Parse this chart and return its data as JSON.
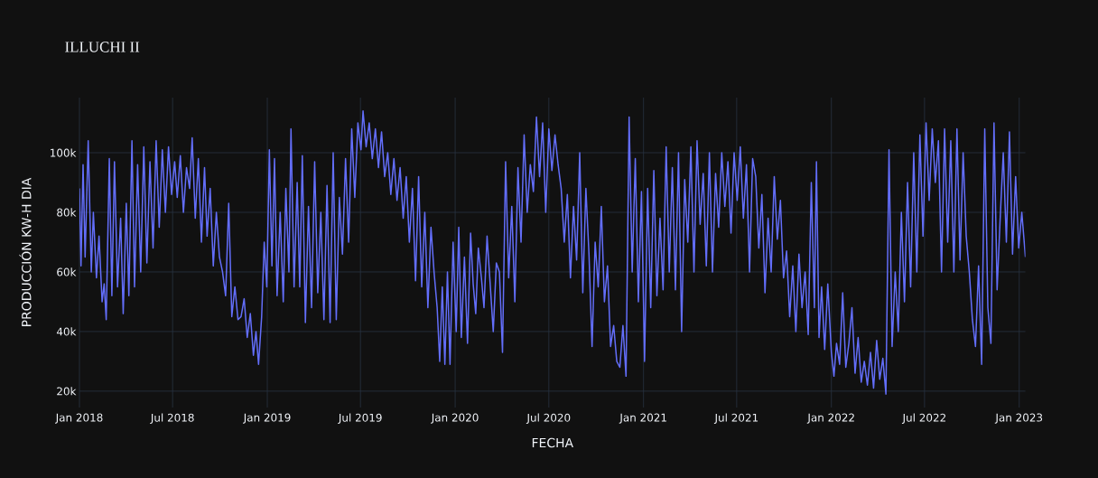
{
  "chart_data": {
    "type": "line",
    "title": "ILLUCHI II",
    "xlabel": "FECHA",
    "ylabel": "PRODUCCIÓN KW-H DIA",
    "color": "#636efa",
    "grid": true,
    "xlim": [
      "2018-01-01",
      "2023-01-13"
    ],
    "ylim": [
      14500,
      118500
    ],
    "xticks": [
      {
        "value": "2018-01-01",
        "label": "Jan 2018"
      },
      {
        "value": "2018-07-01",
        "label": "Jul 2018"
      },
      {
        "value": "2019-01-01",
        "label": "Jan 2019"
      },
      {
        "value": "2019-07-01",
        "label": "Jul 2019"
      },
      {
        "value": "2020-01-01",
        "label": "Jan 2020"
      },
      {
        "value": "2020-07-01",
        "label": "Jul 2020"
      },
      {
        "value": "2021-01-01",
        "label": "Jan 2021"
      },
      {
        "value": "2021-07-01",
        "label": "Jul 2021"
      },
      {
        "value": "2022-01-01",
        "label": "Jan 2022"
      },
      {
        "value": "2022-07-01",
        "label": "Jul 2022"
      },
      {
        "value": "2023-01-01",
        "label": "Jan 2023"
      }
    ],
    "yticks": [
      {
        "value": 20000,
        "label": "20k"
      },
      {
        "value": 40000,
        "label": "40k"
      },
      {
        "value": 60000,
        "label": "60k"
      },
      {
        "value": 80000,
        "label": "80k"
      },
      {
        "value": 100000,
        "label": "100k"
      }
    ],
    "x": [
      "2018-01-01",
      "2018-01-04",
      "2018-01-08",
      "2018-01-12",
      "2018-01-18",
      "2018-01-24",
      "2018-01-28",
      "2018-02-03",
      "2018-02-08",
      "2018-02-14",
      "2018-02-18",
      "2018-02-22",
      "2018-02-28",
      "2018-03-05",
      "2018-03-10",
      "2018-03-16",
      "2018-03-22",
      "2018-03-27",
      "2018-04-02",
      "2018-04-07",
      "2018-04-13",
      "2018-04-18",
      "2018-04-24",
      "2018-04-30",
      "2018-05-06",
      "2018-05-12",
      "2018-05-18",
      "2018-05-24",
      "2018-05-30",
      "2018-06-05",
      "2018-06-11",
      "2018-06-17",
      "2018-06-23",
      "2018-06-29",
      "2018-07-05",
      "2018-07-10",
      "2018-07-16",
      "2018-07-22",
      "2018-07-28",
      "2018-08-03",
      "2018-08-08",
      "2018-08-14",
      "2018-08-20",
      "2018-08-26",
      "2018-09-01",
      "2018-09-06",
      "2018-09-12",
      "2018-09-18",
      "2018-09-24",
      "2018-09-30",
      "2018-10-06",
      "2018-10-12",
      "2018-10-18",
      "2018-10-24",
      "2018-10-30",
      "2018-11-05",
      "2018-11-11",
      "2018-11-17",
      "2018-11-23",
      "2018-11-29",
      "2018-12-05",
      "2018-12-10",
      "2018-12-15",
      "2018-12-21",
      "2018-12-26",
      "2018-12-31",
      "2019-01-05",
      "2019-01-10",
      "2019-01-15",
      "2019-01-20",
      "2019-01-26",
      "2019-02-01",
      "2019-02-06",
      "2019-02-12",
      "2019-02-16",
      "2019-02-22",
      "2019-02-28",
      "2019-03-05",
      "2019-03-10",
      "2019-03-16",
      "2019-03-22",
      "2019-03-28",
      "2019-04-03",
      "2019-04-09",
      "2019-04-15",
      "2019-04-21",
      "2019-04-27",
      "2019-05-03",
      "2019-05-09",
      "2019-05-15",
      "2019-05-21",
      "2019-05-27",
      "2019-06-02",
      "2019-06-08",
      "2019-06-14",
      "2019-06-20",
      "2019-06-26",
      "2019-07-02",
      "2019-07-06",
      "2019-07-12",
      "2019-07-18",
      "2019-07-24",
      "2019-07-30",
      "2019-08-05",
      "2019-08-11",
      "2019-08-17",
      "2019-08-23",
      "2019-08-29",
      "2019-09-04",
      "2019-09-10",
      "2019-09-16",
      "2019-09-22",
      "2019-09-28",
      "2019-10-04",
      "2019-10-10",
      "2019-10-16",
      "2019-10-22",
      "2019-10-28",
      "2019-11-03",
      "2019-11-09",
      "2019-11-15",
      "2019-11-21",
      "2019-11-27",
      "2019-12-02",
      "2019-12-07",
      "2019-12-12",
      "2019-12-17",
      "2019-12-22",
      "2019-12-28",
      "2020-01-03",
      "2020-01-08",
      "2020-01-13",
      "2020-01-19",
      "2020-01-25",
      "2020-01-31",
      "2020-02-05",
      "2020-02-10",
      "2020-02-15",
      "2020-02-21",
      "2020-02-26",
      "2020-03-03",
      "2020-03-09",
      "2020-03-15",
      "2020-03-21",
      "2020-03-27",
      "2020-04-02",
      "2020-04-08",
      "2020-04-14",
      "2020-04-20",
      "2020-04-26",
      "2020-05-02",
      "2020-05-08",
      "2020-05-14",
      "2020-05-20",
      "2020-05-26",
      "2020-06-01",
      "2020-06-07",
      "2020-06-13",
      "2020-06-19",
      "2020-06-25",
      "2020-07-01",
      "2020-07-07",
      "2020-07-13",
      "2020-07-19",
      "2020-07-25",
      "2020-07-31",
      "2020-08-06",
      "2020-08-12",
      "2020-08-18",
      "2020-08-24",
      "2020-08-30",
      "2020-09-05",
      "2020-09-11",
      "2020-09-17",
      "2020-09-23",
      "2020-09-29",
      "2020-10-05",
      "2020-10-11",
      "2020-10-17",
      "2020-10-23",
      "2020-10-29",
      "2020-11-04",
      "2020-11-10",
      "2020-11-16",
      "2020-11-22",
      "2020-11-28",
      "2020-12-04",
      "2020-12-10",
      "2020-12-16",
      "2020-12-22",
      "2020-12-28",
      "2021-01-03",
      "2021-01-09",
      "2021-01-15",
      "2021-01-21",
      "2021-01-27",
      "2021-02-02",
      "2021-02-08",
      "2021-02-14",
      "2021-02-20",
      "2021-02-26",
      "2021-03-04",
      "2021-03-10",
      "2021-03-16",
      "2021-03-22",
      "2021-03-28",
      "2021-04-03",
      "2021-04-09",
      "2021-04-15",
      "2021-04-21",
      "2021-04-27",
      "2021-05-03",
      "2021-05-09",
      "2021-05-15",
      "2021-05-21",
      "2021-05-27",
      "2021-06-02",
      "2021-06-08",
      "2021-06-14",
      "2021-06-20",
      "2021-06-26",
      "2021-07-02",
      "2021-07-08",
      "2021-07-14",
      "2021-07-20",
      "2021-07-26",
      "2021-08-01",
      "2021-08-07",
      "2021-08-13",
      "2021-08-19",
      "2021-08-25",
      "2021-08-31",
      "2021-09-06",
      "2021-09-12",
      "2021-09-18",
      "2021-09-24",
      "2021-09-30",
      "2021-10-06",
      "2021-10-12",
      "2021-10-18",
      "2021-10-24",
      "2021-10-30",
      "2021-11-05",
      "2021-11-11",
      "2021-11-17",
      "2021-11-23",
      "2021-11-29",
      "2021-12-03",
      "2021-12-08",
      "2021-12-13",
      "2021-12-19",
      "2021-12-25",
      "2022-01-01",
      "2022-01-06",
      "2022-01-11",
      "2022-01-17",
      "2022-01-23",
      "2022-01-29",
      "2022-02-04",
      "2022-02-10",
      "2022-02-16",
      "2022-02-22",
      "2022-02-28",
      "2022-03-06",
      "2022-03-12",
      "2022-03-18",
      "2022-03-24",
      "2022-03-30",
      "2022-04-05",
      "2022-04-11",
      "2022-04-17",
      "2022-04-23",
      "2022-04-29",
      "2022-05-05",
      "2022-05-11",
      "2022-05-17",
      "2022-05-23",
      "2022-05-29",
      "2022-06-04",
      "2022-06-10",
      "2022-06-16",
      "2022-06-22",
      "2022-06-28",
      "2022-07-04",
      "2022-07-10",
      "2022-07-16",
      "2022-07-22",
      "2022-07-28",
      "2022-08-03",
      "2022-08-09",
      "2022-08-15",
      "2022-08-21",
      "2022-08-27",
      "2022-09-02",
      "2022-09-08",
      "2022-09-14",
      "2022-09-20",
      "2022-09-26",
      "2022-10-02",
      "2022-10-08",
      "2022-10-14",
      "2022-10-20",
      "2022-10-26",
      "2022-11-01",
      "2022-11-07",
      "2022-11-13",
      "2022-11-19",
      "2022-11-25",
      "2022-12-01",
      "2022-12-07",
      "2022-12-13",
      "2022-12-19",
      "2022-12-25",
      "2022-12-31",
      "2023-01-06",
      "2023-01-13"
    ],
    "values": [
      88000,
      62000,
      96000,
      65000,
      104000,
      60000,
      80000,
      58000,
      72000,
      50000,
      56000,
      44000,
      98000,
      52000,
      97000,
      55000,
      78000,
      46000,
      83000,
      52000,
      104000,
      55000,
      96000,
      60000,
      102000,
      63000,
      97000,
      68000,
      104000,
      75000,
      101000,
      80000,
      102000,
      86000,
      97000,
      85000,
      99000,
      80000,
      95000,
      88000,
      105000,
      78000,
      98000,
      70000,
      95000,
      72000,
      88000,
      62000,
      80000,
      65000,
      60000,
      52000,
      83000,
      45000,
      55000,
      44000,
      45000,
      51000,
      38000,
      46000,
      32000,
      40000,
      29000,
      45000,
      70000,
      55000,
      101000,
      62000,
      98000,
      52000,
      80000,
      50000,
      88000,
      60000,
      108000,
      55000,
      90000,
      55000,
      99000,
      43000,
      82000,
      48000,
      97000,
      53000,
      80000,
      44000,
      89000,
      43000,
      100000,
      44000,
      85000,
      66000,
      98000,
      70000,
      108000,
      85000,
      110000,
      101000,
      114000,
      102000,
      110000,
      98000,
      108000,
      95000,
      107000,
      92000,
      100000,
      86000,
      98000,
      84000,
      95000,
      78000,
      92000,
      70000,
      88000,
      57000,
      92000,
      55000,
      80000,
      48000,
      75000,
      60000,
      48000,
      30000,
      55000,
      29000,
      60000,
      29000,
      70000,
      40000,
      75000,
      38000,
      65000,
      36000,
      73000,
      56000,
      46000,
      68000,
      58000,
      48000,
      72000,
      56000,
      40000,
      63000,
      60000,
      33000,
      97000,
      58000,
      82000,
      50000,
      95000,
      70000,
      106000,
      80000,
      96000,
      87000,
      112000,
      92000,
      110000,
      80000,
      108000,
      94000,
      106000,
      96000,
      88000,
      70000,
      86000,
      58000,
      82000,
      64000,
      100000,
      53000,
      88000,
      66000,
      35000,
      70000,
      55000,
      82000,
      50000,
      62000,
      35000,
      42000,
      30000,
      28000,
      42000,
      25000,
      112000,
      60000,
      98000,
      50000,
      87000,
      30000,
      88000,
      48000,
      94000,
      52000,
      78000,
      54000,
      102000,
      60000,
      95000,
      54000,
      100000,
      40000,
      91000,
      70000,
      102000,
      60000,
      104000,
      76000,
      93000,
      62000,
      100000,
      60000,
      93000,
      75000,
      100000,
      82000,
      97000,
      73000,
      100000,
      84000,
      102000,
      78000,
      96000,
      60000,
      98000,
      92000,
      68000,
      86000,
      53000,
      78000,
      60000,
      92000,
      71000,
      84000,
      58000,
      67000,
      45000,
      62000,
      40000,
      66000,
      48000,
      60000,
      39000,
      90000,
      48000,
      97000,
      38000,
      55000,
      34000,
      56000,
      33000,
      25000,
      36000,
      29000,
      53000,
      28000,
      36000,
      48000,
      26000,
      38000,
      23000,
      30000,
      22000,
      33000,
      21000,
      37000,
      24000,
      31000,
      19000,
      101000,
      35000,
      60000,
      40000,
      80000,
      50000,
      90000,
      55000,
      100000,
      60000,
      106000,
      72000,
      110000,
      84000,
      108000,
      90000,
      104000,
      60000,
      108000,
      70000,
      104000,
      60000,
      108000,
      64000,
      100000,
      72000,
      60000,
      44000,
      35000,
      62000,
      29000,
      108000,
      48000,
      36000,
      110000,
      54000,
      78000,
      100000,
      70000,
      107000,
      66000,
      92000,
      68000,
      80000,
      65000
    ]
  }
}
